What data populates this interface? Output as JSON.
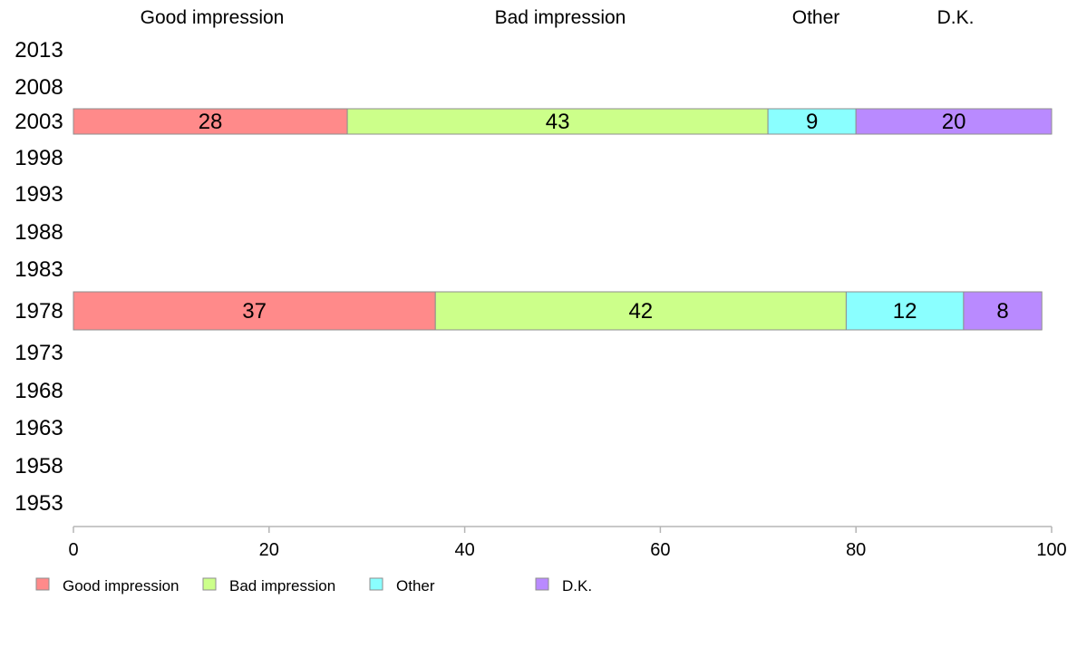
{
  "chart_data": {
    "type": "bar",
    "orientation": "horizontal",
    "stacked": true,
    "categories": [
      "2013",
      "2008",
      "2003",
      "1998",
      "1993",
      "1988",
      "1983",
      "1978",
      "1973",
      "1968",
      "1963",
      "1958",
      "1953"
    ],
    "series": [
      {
        "name": "Good impression",
        "color": "#FF8A8A",
        "values": [
          null,
          null,
          28,
          null,
          null,
          null,
          null,
          37,
          null,
          null,
          null,
          null,
          null
        ]
      },
      {
        "name": "Bad impression",
        "color": "#CCFF8A",
        "values": [
          null,
          null,
          43,
          null,
          null,
          null,
          null,
          42,
          null,
          null,
          null,
          null,
          null
        ]
      },
      {
        "name": "Other",
        "color": "#8AFFFF",
        "values": [
          null,
          null,
          9,
          null,
          null,
          null,
          null,
          12,
          null,
          null,
          null,
          null,
          null
        ]
      },
      {
        "name": "D.K.",
        "color": "#B98AFF",
        "values": [
          null,
          null,
          20,
          null,
          null,
          null,
          null,
          8,
          null,
          null,
          null,
          null,
          null
        ]
      }
    ],
    "column_headers": [
      "Good impression",
      "Bad impression",
      "Other",
      "D.K."
    ],
    "xlim": [
      0,
      100
    ],
    "xticks": [
      0,
      20,
      40,
      60,
      80,
      100
    ],
    "xlabel": "",
    "ylabel": "",
    "title": "",
    "legend_position": "bottom-left",
    "grid": false
  }
}
